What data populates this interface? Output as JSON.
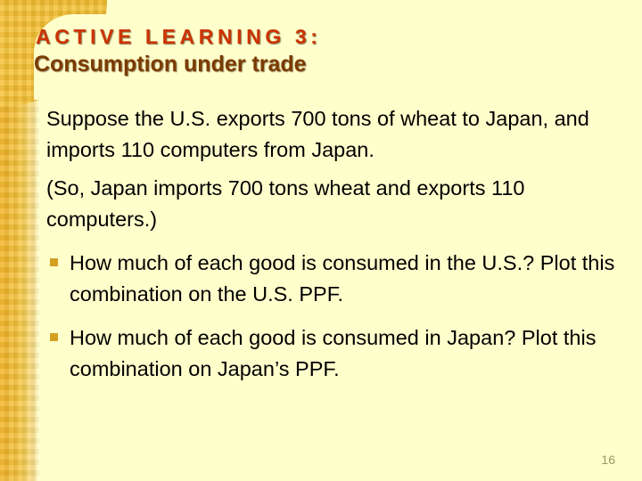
{
  "slide": {
    "kicker": "ACTIVE LEARNING 3:",
    "title": "Consumption under trade",
    "paragraphs": [
      "Suppose the U.S. exports 700 tons of wheat to Japan, and imports 110 computers from Japan.",
      "(So, Japan imports 700 tons wheat and exports 110 computers.)"
    ],
    "bullets": [
      "How much of each good is consumed in the U.S.?  Plot this combination on the U.S. PPF.",
      "How much of each good is consumed in Japan? Plot this combination on Japan’s PPF."
    ],
    "page_number": "16"
  },
  "colors": {
    "background": "#ffffcc",
    "kicker": "#cc3300",
    "title": "#7a3b00",
    "accent_band": "#f5c033",
    "bullet": "#d4a020"
  }
}
